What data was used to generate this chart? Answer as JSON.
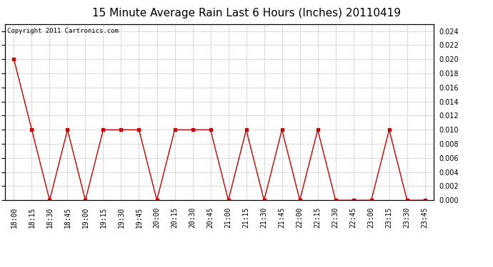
{
  "title": "15 Minute Average Rain Last 6 Hours (Inches) 20110419",
  "copyright_text": "Copyright 2011 Cartronics.com",
  "x_labels": [
    "18:00",
    "18:15",
    "18:30",
    "18:45",
    "19:00",
    "19:15",
    "19:30",
    "19:45",
    "20:00",
    "20:15",
    "20:30",
    "20:45",
    "21:00",
    "21:15",
    "21:30",
    "21:45",
    "22:00",
    "22:15",
    "22:30",
    "22:45",
    "23:00",
    "23:15",
    "23:30",
    "23:45"
  ],
  "y_values": [
    0.02,
    0.01,
    0.0,
    0.01,
    0.0,
    0.01,
    0.01,
    0.01,
    0.0,
    0.01,
    0.01,
    0.01,
    0.0,
    0.01,
    0.0,
    0.01,
    0.0,
    0.01,
    0.0,
    0.0,
    0.0,
    0.01,
    0.0,
    0.0
  ],
  "line_color": "#cc0000",
  "marker_color": "#cc0000",
  "background_color": "#ffffff",
  "plot_bg_color": "#ffffff",
  "grid_color": "#aaaaaa",
  "ylim": [
    0,
    0.025
  ],
  "yticks": [
    0.0,
    0.002,
    0.004,
    0.006,
    0.008,
    0.01,
    0.012,
    0.014,
    0.016,
    0.018,
    0.02,
    0.022,
    0.024
  ],
  "title_fontsize": 11,
  "tick_fontsize": 7,
  "copyright_fontsize": 6.5
}
